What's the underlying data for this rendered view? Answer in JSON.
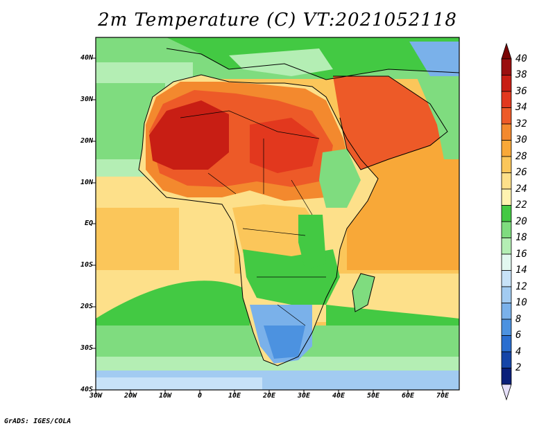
{
  "title": "2m Temperature (C) VT:2021052118",
  "credit": "GrADS: IGES/COLA",
  "map": {
    "lat_labels": [
      "40N",
      "30N",
      "20N",
      "10N",
      "EQ",
      "10S",
      "20S",
      "30S",
      "40S"
    ],
    "lon_labels": [
      "30W",
      "20W",
      "10W",
      "0",
      "10E",
      "20E",
      "30E",
      "40E",
      "50E",
      "60E",
      "70E"
    ],
    "lat_range": [
      -40,
      45
    ],
    "lon_range": [
      -30,
      75
    ]
  },
  "colorbar": {
    "levels": [
      "40",
      "38",
      "36",
      "34",
      "32",
      "30",
      "28",
      "26",
      "24",
      "22",
      "20",
      "18",
      "16",
      "14",
      "12",
      "10",
      "8",
      "6",
      "4",
      "2"
    ],
    "colors": [
      "#9a0f0f",
      "#c81e14",
      "#e2381e",
      "#ed5a28",
      "#f3892e",
      "#f8a838",
      "#fbc65a",
      "#fde08a",
      "#fff3b0",
      "#43c943",
      "#7fdc7f",
      "#b4eeb4",
      "#e2f8f0",
      "#c7e2f8",
      "#a2cbf1",
      "#7ab1ea",
      "#4c92e0",
      "#2a6ed0",
      "#1545a8",
      "#0a1f7a"
    ],
    "top_color": "#7a0505",
    "bottom_color": "#e6e0fa"
  }
}
